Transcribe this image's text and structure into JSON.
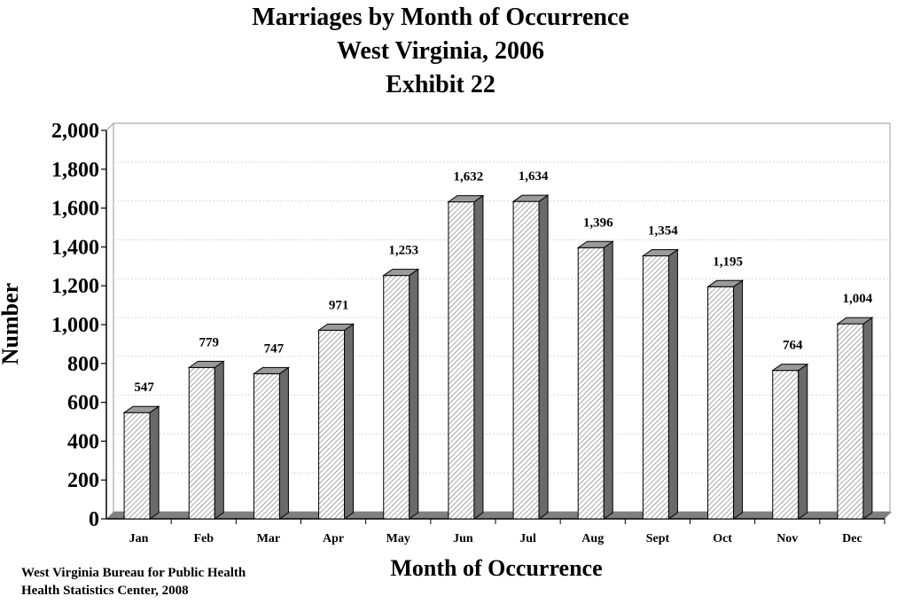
{
  "header": {
    "title_line1": "Marriages by Month of Occurrence",
    "title_line2": "West Virginia, 2006",
    "title_line3": "Exhibit 22"
  },
  "footer": {
    "source_line1": "West Virginia Bureau for Public Health",
    "source_line2": "Health Statistics Center, 2008"
  },
  "chart_data": {
    "type": "bar",
    "title": "Marriages by Month of Occurrence West Virginia, 2006 Exhibit 22",
    "xlabel": "Month of Occurrence",
    "ylabel": "Number",
    "categories": [
      "Jan",
      "Feb",
      "Mar",
      "Apr",
      "May",
      "Jun",
      "Jul",
      "Aug",
      "Sept",
      "Oct",
      "Nov",
      "Dec"
    ],
    "values": [
      547,
      779,
      747,
      971,
      1253,
      1632,
      1634,
      1396,
      1354,
      1195,
      764,
      1004
    ],
    "data_labels": [
      "547",
      "779",
      "747",
      "971",
      "1,253",
      "1,632",
      "1,634",
      "1,396",
      "1,354",
      "1,195",
      "764",
      "1,004"
    ],
    "yticks": [
      "0",
      "200",
      "400",
      "600",
      "800",
      "1,000",
      "1,200",
      "1,400",
      "1,600",
      "1,800",
      "2,000"
    ],
    "ylim": [
      0,
      2000
    ],
    "grid": true,
    "legend": "none",
    "style": "3d-hatched",
    "colors": {
      "bar_fill": "#ffffff",
      "bar_hatch": "#555555",
      "bar_side": "#6a6a6a",
      "bar_top": "#9a9a9a",
      "floor": "#808080"
    }
  }
}
